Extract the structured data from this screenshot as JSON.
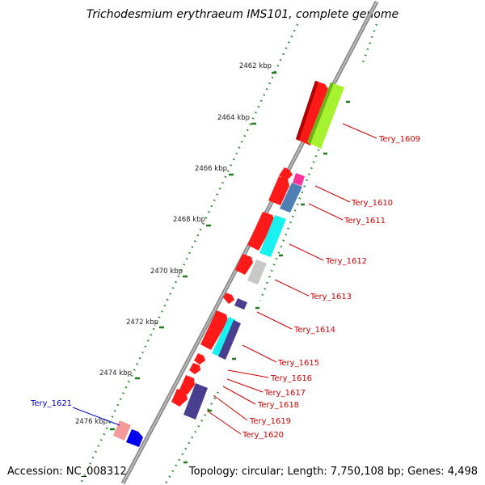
{
  "title": "Trichodesmium erythraeum IMS101, complete genome",
  "footer": {
    "accession": "Accession: NC_008312",
    "summary": "Topology: circular; Length: 7,750,108 bp; Genes: 4,498"
  },
  "kbp_labels": [
    "2462 kbp",
    "2464 kbp",
    "2466 kbp",
    "2468 kbp",
    "2470 kbp",
    "2472 kbp",
    "2474 kbp",
    "2476 kbp"
  ],
  "genes": [
    {
      "name": "Tery_1609",
      "color": "#cc0000"
    },
    {
      "name": "Tery_1610",
      "color": "#cc0000"
    },
    {
      "name": "Tery_1611",
      "color": "#cc0000"
    },
    {
      "name": "Tery_1612",
      "color": "#cc0000"
    },
    {
      "name": "Tery_1613",
      "color": "#cc0000"
    },
    {
      "name": "Tery_1614",
      "color": "#cc0000"
    },
    {
      "name": "Tery_1615",
      "color": "#cc0000"
    },
    {
      "name": "Tery_1616",
      "color": "#cc0000"
    },
    {
      "name": "Tery_1617",
      "color": "#cc0000"
    },
    {
      "name": "Tery_1618",
      "color": "#cc0000"
    },
    {
      "name": "Tery_1619",
      "color": "#cc0000"
    },
    {
      "name": "Tery_1620",
      "color": "#cc0000"
    },
    {
      "name": "Tery_1621",
      "color": "#0000cc"
    }
  ],
  "colors": {
    "backbone": "#7a7a7a",
    "tick_green": "#1f7a1f",
    "dot_green": "#2e8b2e",
    "forward_red": "#ff1a1a",
    "reverse_blue": "#0000ee",
    "lime": "#a6f22e",
    "cyan": "#19f0f0",
    "steel": "#4f7fb3",
    "navy": "#4a3f8f",
    "grey": "#c8c8c8",
    "pink": "#ff3399",
    "salmon": "#f59a9a"
  }
}
